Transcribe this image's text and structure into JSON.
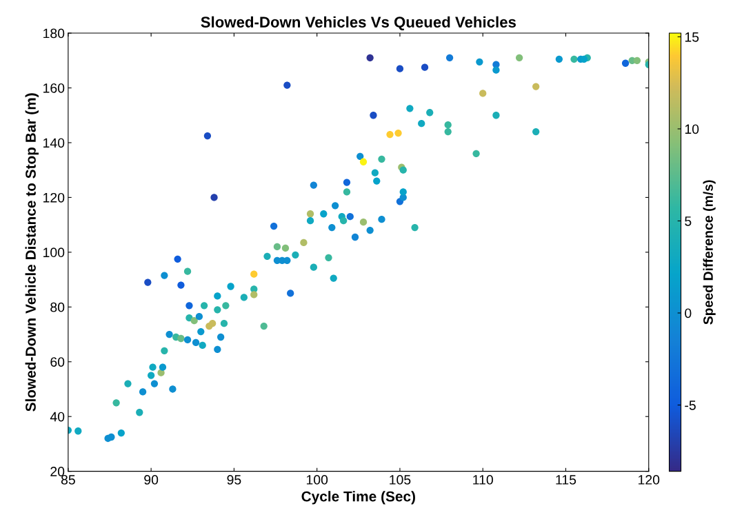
{
  "chart_data": {
    "type": "scatter",
    "title": "Slowed-Down Vehicles Vs Queued Vehicles",
    "xlabel": "Cycle Time (Sec)",
    "ylabel": "Slowed-Down Vehicle Distance to Stop Bar (m)",
    "clabel": "Speed Difference (m/s)",
    "marker": "circle",
    "x": [
      85,
      85.6,
      87.4,
      87.6,
      88.2,
      87.9,
      88.6,
      89.3,
      89.5,
      90,
      90.1,
      90.2,
      90.6,
      90.7,
      90.8,
      91.1,
      91.3,
      91.5,
      91.8,
      92.2,
      90.8,
      89.8,
      91.6,
      91.8,
      92.2,
      92.3,
      92.3,
      92.6,
      92.7,
      92.9,
      93.0,
      93.1,
      93.2,
      93.5,
      93.7,
      93.4,
      93.8,
      94,
      94,
      94,
      94.2,
      94.4,
      94.5,
      94.8,
      95.6,
      96.2,
      96.2,
      96.2,
      96.8,
      97,
      97.4,
      97.6,
      97.6,
      97.9,
      98.1,
      98.2,
      98.2,
      98.4,
      98.7,
      99.2,
      99.6,
      99.6,
      99.8,
      99.8,
      100.4,
      100.7,
      100.9,
      101.1,
      101,
      101.5,
      101.6,
      101.8,
      102,
      101.8,
      102.3,
      102.6,
      102.8,
      102.8,
      103.2,
      103.2,
      103.4,
      103.5,
      103.6,
      103.9,
      103.9,
      104.4,
      104.9,
      105,
      105,
      105.2,
      105.1,
      105.2,
      105.2,
      105.6,
      105.9,
      106.3,
      106.5,
      106.8,
      107.9,
      107.9,
      108,
      109.6,
      110,
      109.8,
      110.8,
      110.8,
      110.8,
      112.2,
      113.2,
      113.2,
      114.6,
      115.5,
      115.9,
      116.3,
      118.6,
      119,
      119.3,
      120,
      120,
      116.1
    ],
    "values": [
      35,
      34.7,
      32,
      32.5,
      34,
      45,
      52,
      41.5,
      49,
      55,
      58,
      52,
      56,
      58,
      64,
      70,
      50,
      69,
      68.5,
      68,
      91.5,
      89,
      97.5,
      88,
      93,
      80.5,
      76,
      75,
      67,
      76.5,
      71,
      66,
      80.5,
      73,
      74,
      142.5,
      120,
      84,
      79,
      64.5,
      69,
      74,
      80.5,
      87.5,
      83.5,
      92,
      86.5,
      84.5,
      73,
      98.5,
      109.5,
      102,
      97,
      97,
      101.5,
      161,
      97,
      85,
      99,
      103.5,
      114,
      111.5,
      124.5,
      94.5,
      114,
      98,
      109,
      117,
      90.5,
      113,
      111.5,
      122,
      113,
      125.5,
      105.5,
      135,
      133,
      111,
      108,
      171,
      150,
      129,
      126,
      134,
      112,
      143,
      143.5,
      167,
      118.5,
      120,
      131,
      130,
      122,
      152.5,
      109,
      147,
      167.5,
      151,
      146.5,
      144,
      171,
      136,
      158,
      169.5,
      168.5,
      166.5,
      150,
      171,
      160.5,
      144,
      170.5,
      170.5,
      170.5,
      171,
      169,
      170,
      170,
      169.5,
      168.5,
      170.5
    ],
    "cvalues": [
      3,
      3,
      0,
      0,
      2,
      6,
      4,
      4,
      0,
      3,
      3,
      0,
      10,
      1,
      5,
      0,
      0,
      6,
      8,
      0,
      0,
      -6,
      -5,
      -5,
      6,
      -4,
      5,
      9,
      0,
      0,
      1,
      3,
      5,
      12,
      12,
      -6,
      -7,
      2,
      5,
      0,
      0,
      5,
      6,
      2,
      4,
      14,
      5,
      11,
      7,
      4,
      -3,
      8,
      0,
      0,
      9,
      -6,
      0,
      -3,
      4,
      11,
      11,
      3,
      -1,
      4,
      2,
      6,
      0,
      0,
      3,
      3,
      5,
      6,
      -3,
      -4,
      -1,
      0,
      15,
      10,
      0,
      -8,
      -6,
      3,
      2,
      6,
      0,
      14,
      14,
      -6,
      -3,
      0,
      10,
      5,
      2,
      3,
      5,
      3,
      -6,
      4,
      6,
      6,
      -2,
      6,
      12,
      1,
      -2,
      1,
      4,
      9,
      12,
      4,
      1,
      6,
      1,
      5,
      -4,
      8,
      9,
      9,
      5,
      2
    ],
    "xlim": [
      85,
      120
    ],
    "xticks": [
      85,
      90,
      95,
      100,
      105,
      110,
      115,
      120
    ],
    "ylim": [
      20,
      180
    ],
    "yticks": [
      20,
      40,
      60,
      80,
      100,
      120,
      140,
      160,
      180
    ],
    "clim": [
      -8.6,
      15.2
    ],
    "cticks": [
      -5,
      0,
      5,
      10,
      15
    ]
  }
}
